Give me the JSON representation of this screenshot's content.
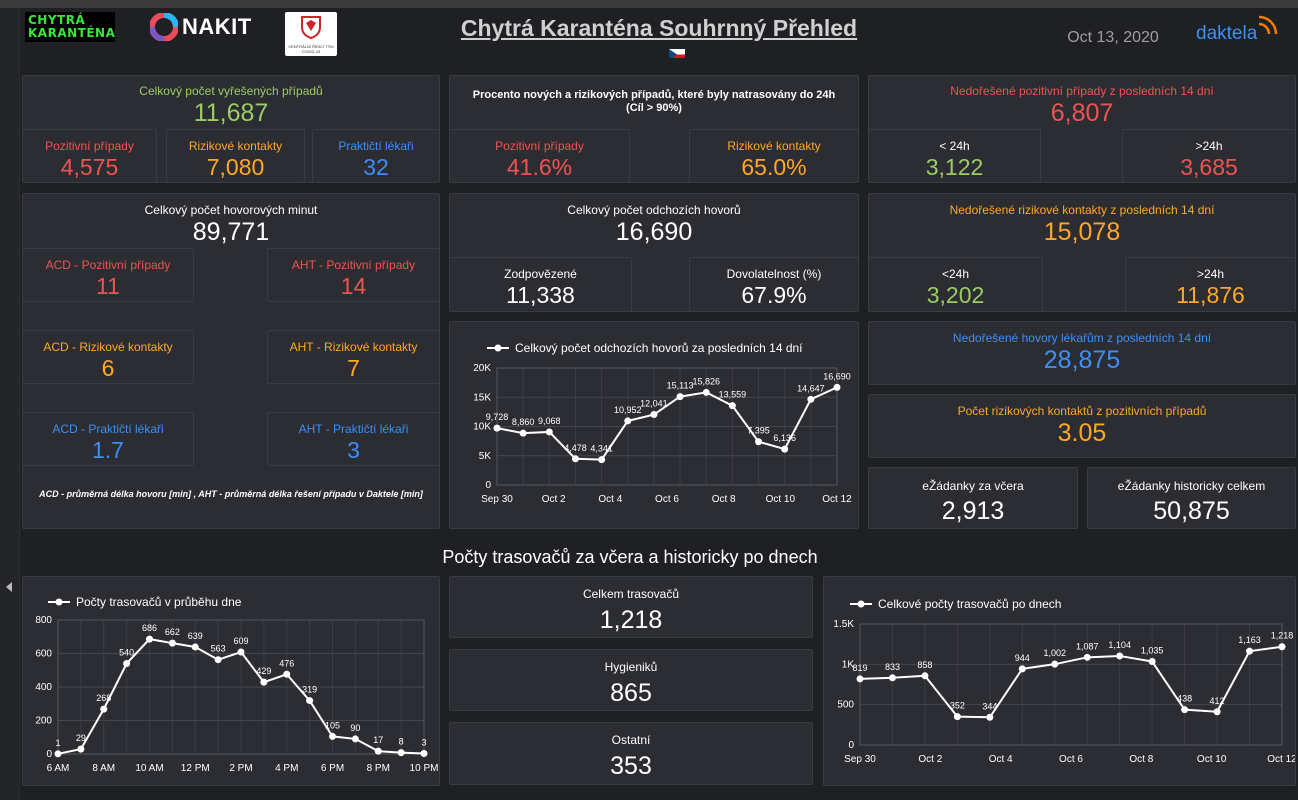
{
  "header": {
    "brand1_line1": "CHYTRÁ",
    "brand1_line2": "KARANTÉNA",
    "brand2": "NAKIT",
    "emblem_text": "CENTRÁLNÍ ŘÍDÍCÍ TÝM COVID-19",
    "title": "Chytrá Karanténa Souhrnný Přehled",
    "date": "Oct 13, 2020",
    "daktela": "daktela",
    "flag_icon": "czech-flag-icon"
  },
  "resolved": {
    "title": "Celkový počet vyřešených případů",
    "value": "11,687",
    "sub": [
      {
        "label": "Pozitivní případy",
        "value": "4,575"
      },
      {
        "label": "Rizikové kontakty",
        "value": "7,080"
      },
      {
        "label": "Praktičtí lékaři",
        "value": "32"
      }
    ]
  },
  "percent": {
    "title_line1": "Procento nových a rizikových případů, které byly natrasovány do 24h",
    "title_line2": "(Cíl > 90%)",
    "sub": [
      {
        "label": "Pozitivní případy",
        "value": "41.6%"
      },
      {
        "label": "Rizikové kontakty",
        "value": "65.0%"
      }
    ]
  },
  "unresolved_pos": {
    "title": "Nedořešené pozitivní případy z posledních 14 dní",
    "value": "6,807",
    "sub": [
      {
        "label": "< 24h",
        "value": "3,122"
      },
      {
        "label": ">24h",
        "value": "3,685"
      }
    ]
  },
  "minutes": {
    "title": "Celkový počet hovorových minut",
    "value": "89,771",
    "items": [
      {
        "label": "ACD - Pozitivní případy",
        "value": "11"
      },
      {
        "label": "AHT - Pozitivní případy",
        "value": "14"
      },
      {
        "label": "ACD - Rizikové kontakty",
        "value": "6"
      },
      {
        "label": "AHT - Rizikové kontakty",
        "value": "7"
      },
      {
        "label": "ACD - Praktičtí lékaři",
        "value": "1.7"
      },
      {
        "label": "AHT - Praktičtí lékaři",
        "value": "3"
      }
    ],
    "note": "ACD - průměrná délka hovoru [min] , AHT - průměrná délka řešení případu v Daktele [min]"
  },
  "outgoing": {
    "title": "Celkový počet odchozích hovorů",
    "value": "16,690",
    "sub": [
      {
        "label": "Zodpovězené",
        "value": "11,338"
      },
      {
        "label": "Dovolatelnost (%)",
        "value": "67.9%"
      }
    ]
  },
  "unresolved_risk": {
    "title": "Nedořešené rizikové kontakty z posledních 14 dní",
    "value": "15,078",
    "sub": [
      {
        "label": "<24h",
        "value": "3,202"
      },
      {
        "label": ">24h",
        "value": "11,876"
      }
    ]
  },
  "doctor_calls": {
    "title": "Nedořešené hovory lékařům z posledních 14 dní",
    "value": "28,875"
  },
  "risk_ratio": {
    "title": "Počet rizikových kontaktů z pozitivních případů",
    "value": "3.05"
  },
  "ezadanky": [
    {
      "label": "eŽádanky za včera",
      "value": "2,913"
    },
    {
      "label": "eŽádanky historicky celkem",
      "value": "50,875"
    }
  ],
  "section_title": "Počty trasovačů za včera a historicky po dnech",
  "tracers": [
    {
      "label": "Celkem trasovačů",
      "value": "1,218"
    },
    {
      "label": "Hygieniků",
      "value": "865"
    },
    {
      "label": "Ostatní",
      "value": "353"
    }
  ],
  "chart_data": [
    {
      "type": "line",
      "title": "Celkový počet odchozích hovorů za posledních 14 dní",
      "x": [
        "Sep 30",
        "Oct 1",
        "Oct 2",
        "Oct 3",
        "Oct 4",
        "Oct 5",
        "Oct 6",
        "Oct 7",
        "Oct 8",
        "Oct 9",
        "Oct 10",
        "Oct 11",
        "Oct 12",
        "Oct 13"
      ],
      "values": [
        9728,
        8860,
        9068,
        4478,
        4341,
        10952,
        12041,
        15113,
        15826,
        13559,
        7395,
        6136,
        14647,
        16690
      ],
      "labels": [
        "9,728",
        "8,860",
        "9,068",
        "4,478",
        "4,341",
        "10,952",
        "12,041",
        "15,113",
        "15,826",
        "13,559",
        "7,395",
        "6,136",
        "14,647",
        "16,690"
      ],
      "xticks": [
        "Sep 30",
        "Oct 2",
        "Oct 4",
        "Oct 6",
        "Oct 8",
        "Oct 10",
        "Oct 12"
      ],
      "yticks": [
        "0",
        "5K",
        "10K",
        "15K",
        "20K"
      ],
      "ylim": [
        0,
        20000
      ],
      "grid": true,
      "legend": "top-left"
    },
    {
      "type": "line",
      "title": "Počty trasovačů v průběhu dne",
      "x": [
        "6 AM",
        "7 AM",
        "8 AM",
        "9 AM",
        "10 AM",
        "11 AM",
        "12 PM",
        "1 PM",
        "2 PM",
        "3 PM",
        "4 PM",
        "5 PM",
        "6 PM",
        "7 PM",
        "8 PM",
        "9 PM",
        "10 PM"
      ],
      "values": [
        1,
        29,
        268,
        540,
        686,
        662,
        639,
        563,
        609,
        429,
        476,
        319,
        105,
        90,
        17,
        8,
        3
      ],
      "labels": [
        "1",
        "29",
        "268",
        "540",
        "686",
        "662",
        "639",
        "563",
        "609",
        "429",
        "476",
        "319",
        "105",
        "90",
        "17",
        "8",
        "3"
      ],
      "xticks": [
        "6 AM",
        "8 AM",
        "10 AM",
        "12 PM",
        "2 PM",
        "4 PM",
        "6 PM",
        "8 PM",
        "10 PM"
      ],
      "yticks": [
        "0",
        "200",
        "400",
        "600",
        "800"
      ],
      "ylim": [
        0,
        800
      ],
      "grid": true,
      "legend": "top-left"
    },
    {
      "type": "line",
      "title": "Celkové počty trasovačů po dnech",
      "x": [
        "Sep 30",
        "Oct 1",
        "Oct 2",
        "Oct 3",
        "Oct 4",
        "Oct 5",
        "Oct 6",
        "Oct 7",
        "Oct 8",
        "Oct 9",
        "Oct 10",
        "Oct 11",
        "Oct 12",
        "Oct 13"
      ],
      "values": [
        819,
        833,
        858,
        352,
        344,
        944,
        1002,
        1087,
        1104,
        1035,
        438,
        412,
        1163,
        1218
      ],
      "labels": [
        "819",
        "833",
        "858",
        "352",
        "344",
        "944",
        "1,002",
        "1,087",
        "1,104",
        "1,035",
        "438",
        "412",
        "1,163",
        "1,218"
      ],
      "xticks": [
        "Sep 30",
        "Oct 2",
        "Oct 4",
        "Oct 6",
        "Oct 8",
        "Oct 10",
        "Oct 12"
      ],
      "yticks": [
        "0",
        "500",
        "1K",
        "1.5K"
      ],
      "ylim": [
        0,
        1500
      ],
      "grid": true,
      "legend": "top-left"
    }
  ]
}
